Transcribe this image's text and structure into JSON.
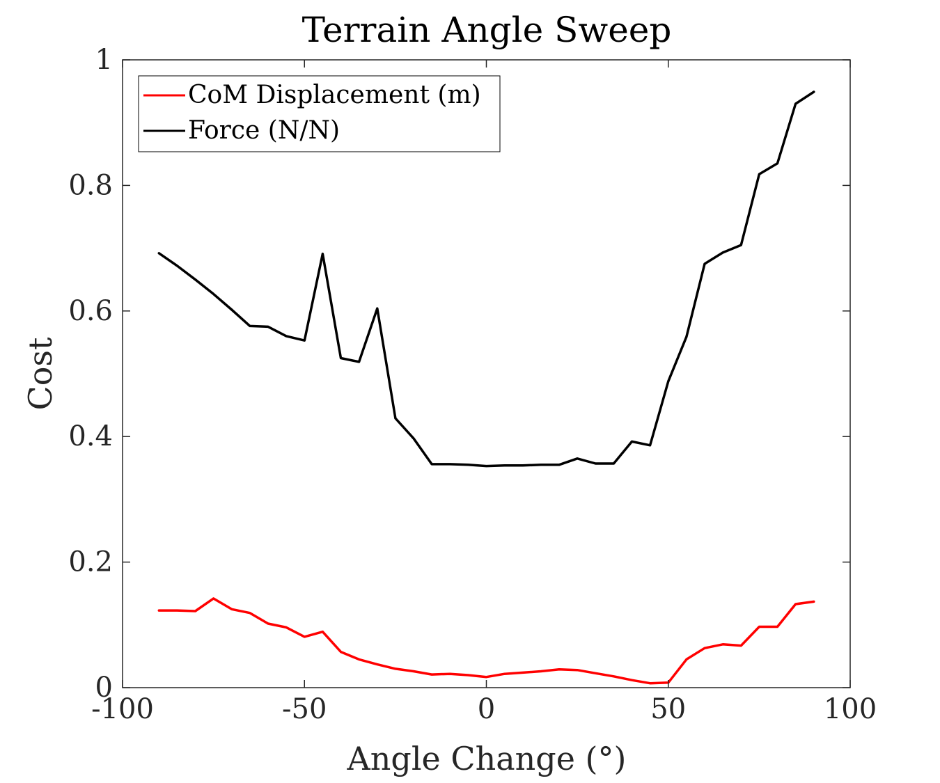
{
  "chart_data": {
    "type": "line",
    "title": "Terrain Angle Sweep",
    "xlabel": "Angle Change (°)",
    "ylabel": "Cost",
    "xlim": [
      -100,
      100
    ],
    "ylim": [
      0,
      1
    ],
    "xticks": [
      -100,
      -50,
      0,
      50,
      100
    ],
    "yticks": [
      0,
      0.2,
      0.4,
      0.6,
      0.8,
      1
    ],
    "xtick_labels": [
      "-100",
      "-50",
      "0",
      "50",
      "100"
    ],
    "ytick_labels": [
      "0",
      "0.2",
      "0.4",
      "0.6",
      "0.8",
      "1"
    ],
    "grid": false,
    "legend_position": "top-left",
    "x": [
      -90,
      -85,
      -80,
      -75,
      -70,
      -65,
      -60,
      -55,
      -50,
      -45,
      -40,
      -35,
      -30,
      -25,
      -20,
      -15,
      -10,
      -5,
      0,
      5,
      10,
      15,
      20,
      25,
      30,
      35,
      40,
      45,
      50,
      55,
      60,
      65,
      70,
      75,
      80,
      85,
      90
    ],
    "series": [
      {
        "name": "CoM Displacement (m)",
        "color": "#ff0000",
        "values": [
          0.123,
          0.123,
          0.122,
          0.142,
          0.125,
          0.119,
          0.102,
          0.096,
          0.081,
          0.089,
          0.057,
          0.045,
          0.037,
          0.03,
          0.026,
          0.021,
          0.022,
          0.02,
          0.017,
          0.022,
          0.024,
          0.026,
          0.029,
          0.028,
          0.023,
          0.018,
          0.012,
          0.007,
          0.008,
          0.045,
          0.063,
          0.069,
          0.067,
          0.097,
          0.097,
          0.133,
          0.137
        ]
      },
      {
        "name": "Force (N/N)",
        "color": "#000000",
        "values": [
          0.692,
          0.672,
          0.65,
          0.627,
          0.602,
          0.576,
          0.575,
          0.56,
          0.553,
          0.691,
          0.525,
          0.519,
          0.604,
          0.429,
          0.397,
          0.356,
          0.356,
          0.355,
          0.353,
          0.354,
          0.354,
          0.355,
          0.355,
          0.365,
          0.357,
          0.357,
          0.392,
          0.386,
          0.488,
          0.559,
          0.675,
          0.693,
          0.705,
          0.818,
          0.835,
          0.93,
          0.949
        ]
      }
    ]
  }
}
